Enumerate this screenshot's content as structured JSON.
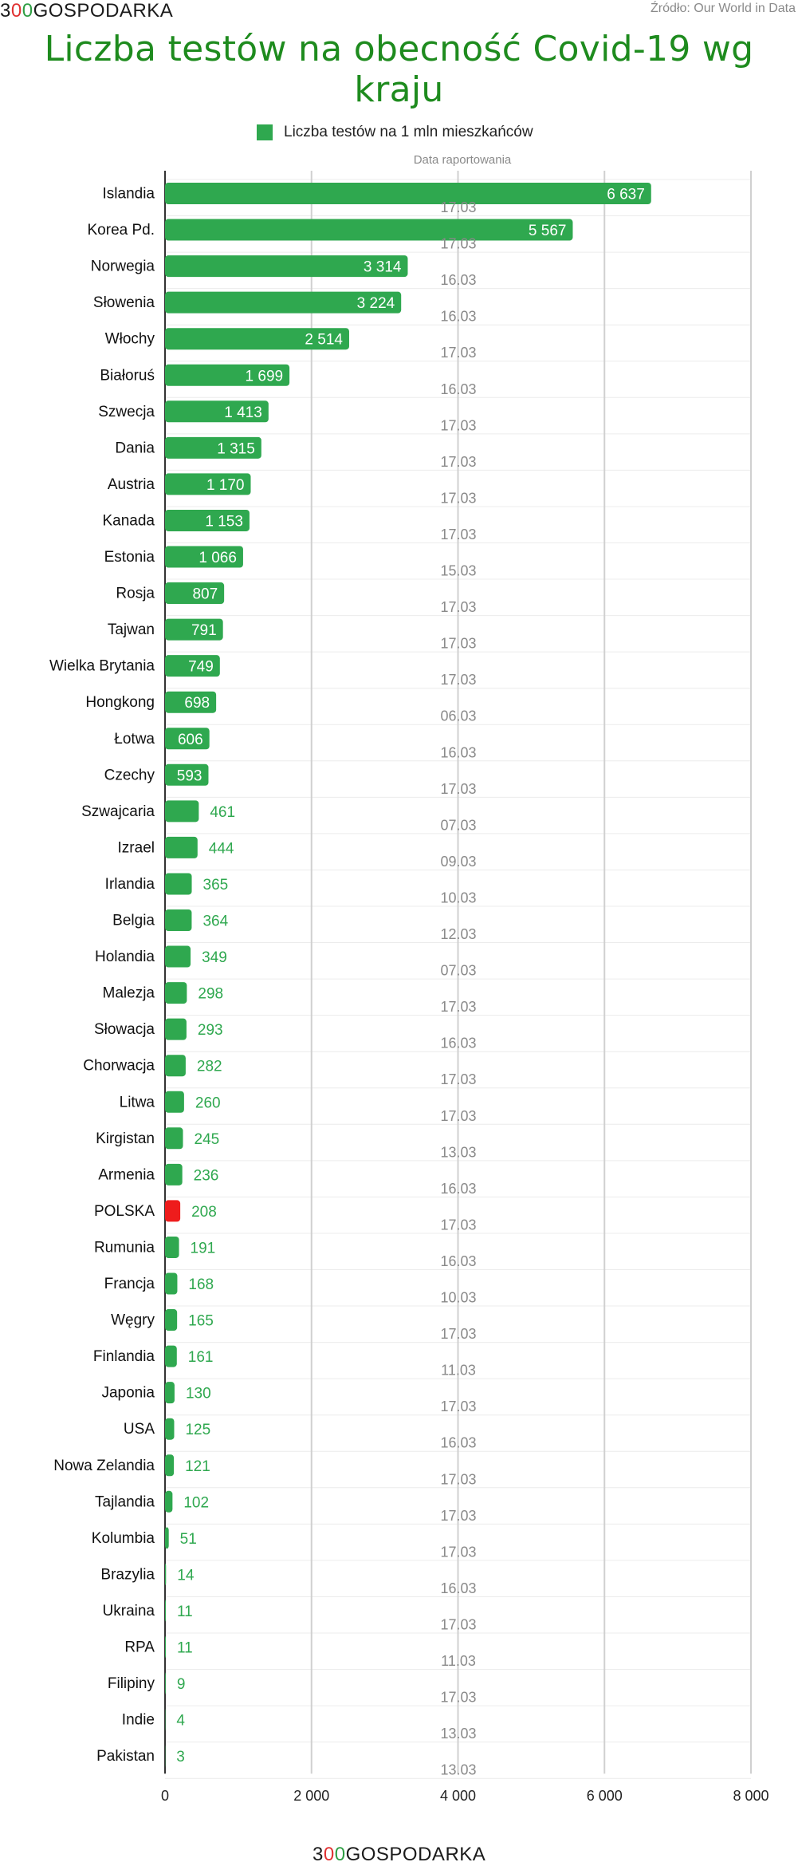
{
  "brand": {
    "prefix": "3",
    "o1": "0",
    "o2": "0",
    "suffix": "GOSPODARKA"
  },
  "source": "Źródło: Our World in Data",
  "chart_data": {
    "type": "bar",
    "orientation": "horizontal",
    "title": "Liczba testów na obecność Covid-19 wg kraju",
    "legend": "Liczba testów na 1 mln mieszkańców",
    "date_column_header": "Data raportowania",
    "xlim": [
      0,
      8000
    ],
    "x_ticks": [
      "0",
      "2 000",
      "4 000",
      "6 000",
      "8 000"
    ],
    "grid": true,
    "colors": {
      "bar": "#2fa84f",
      "highlight": "#ee1c1c",
      "inside_label": "#ffffff",
      "outside_label": "#2fa84f",
      "date": "#8a8a8a"
    },
    "categories": [
      "Islandia",
      "Korea Pd.",
      "Norwegia",
      "Słowenia",
      "Włochy",
      "Białoruś",
      "Szwecja",
      "Dania",
      "Austria",
      "Kanada",
      "Estonia",
      "Rosja",
      "Tajwan",
      "Wielka Brytania",
      "Hongkong",
      "Łotwa",
      "Czechy",
      "Szwajcaria",
      "Izrael",
      "Irlandia",
      "Belgia",
      "Holandia",
      "Malezja",
      "Słowacja",
      "Chorwacja",
      "Litwa",
      "Kirgistan",
      "Armenia",
      "POLSKA",
      "Rumunia",
      "Francja",
      "Węgry",
      "Finlandia",
      "Japonia",
      "USA",
      "Nowa Zelandia",
      "Tajlandia",
      "Kolumbia",
      "Brazylia",
      "Ukraina",
      "RPA",
      "Filipiny",
      "Indie",
      "Pakistan"
    ],
    "values": [
      6637,
      5567,
      3314,
      3224,
      2514,
      1699,
      1413,
      1315,
      1170,
      1153,
      1066,
      807,
      791,
      749,
      698,
      606,
      593,
      461,
      444,
      365,
      364,
      349,
      298,
      293,
      282,
      260,
      245,
      236,
      208,
      191,
      168,
      165,
      161,
      130,
      125,
      121,
      102,
      51,
      14,
      11,
      11,
      9,
      4,
      3
    ],
    "value_labels": [
      "6 637",
      "5 567",
      "3 314",
      "3 224",
      "2 514",
      "1 699",
      "1 413",
      "1 315",
      "1 170",
      "1 153",
      "1 066",
      "807",
      "791",
      "749",
      "698",
      "606",
      "593",
      "461",
      "444",
      "365",
      "364",
      "349",
      "298",
      "293",
      "282",
      "260",
      "245",
      "236",
      "208",
      "191",
      "168",
      "165",
      "161",
      "130",
      "125",
      "121",
      "102",
      "51",
      "14",
      "11",
      "11",
      "9",
      "4",
      "3"
    ],
    "dates": [
      "17.03",
      "17.03",
      "16.03",
      "16.03",
      "17.03",
      "16.03",
      "17.03",
      "17.03",
      "17.03",
      "17.03",
      "15.03",
      "17.03",
      "17.03",
      "17.03",
      "06.03",
      "16.03",
      "17.03",
      "07.03",
      "09.03",
      "10.03",
      "12.03",
      "07.03",
      "17.03",
      "16.03",
      "17.03",
      "17.03",
      "13.03",
      "16.03",
      "17.03",
      "16.03",
      "10.03",
      "17.03",
      "11.03",
      "17.03",
      "16.03",
      "17.03",
      "17.03",
      "17.03",
      "16.03",
      "17.03",
      "11.03",
      "17.03",
      "13.03",
      "13.03"
    ],
    "highlight": "POLSKA"
  }
}
